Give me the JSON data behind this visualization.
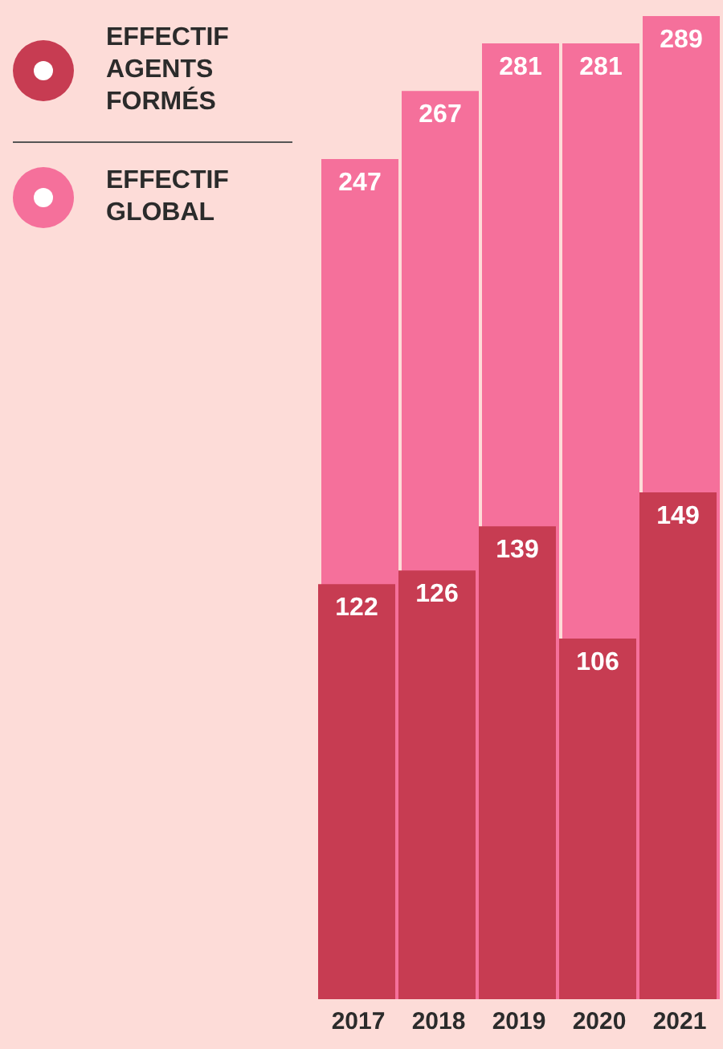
{
  "chart_data": {
    "type": "bar",
    "categories": [
      "2017",
      "2018",
      "2019",
      "2020",
      "2021"
    ],
    "series": [
      {
        "name": "EFFECTIF AGENTS FORMÉS",
        "color": "#c73c52",
        "values": [
          122,
          126,
          139,
          106,
          149
        ]
      },
      {
        "name": "EFFECTIF GLOBAL",
        "color": "#f5709b",
        "values": [
          247,
          267,
          281,
          281,
          289
        ]
      }
    ],
    "data_labels": true,
    "legend": "top left",
    "grid": false
  }
}
